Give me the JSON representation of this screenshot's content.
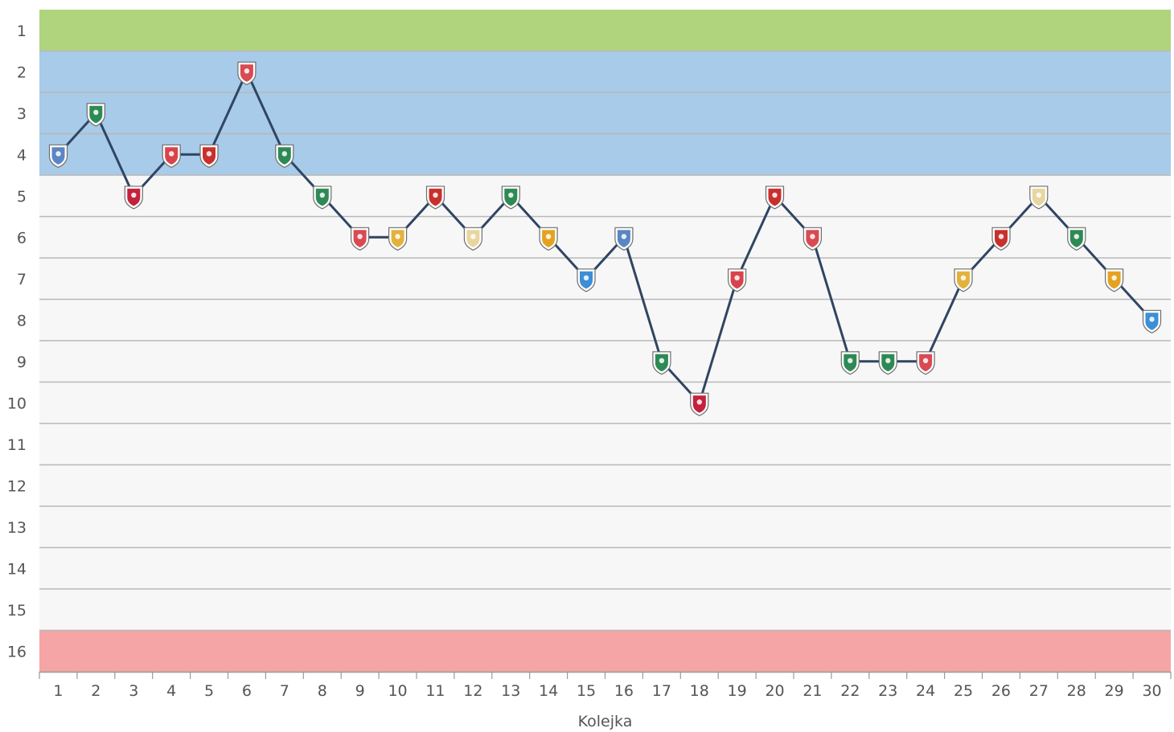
{
  "chart_data": {
    "type": "line",
    "xlabel": "Kolejka",
    "ylabel": "",
    "x": [
      1,
      2,
      3,
      4,
      5,
      6,
      7,
      8,
      9,
      10,
      11,
      12,
      13,
      14,
      15,
      16,
      17,
      18,
      19,
      20,
      21,
      22,
      23,
      24,
      25,
      26,
      27,
      28,
      29,
      30
    ],
    "ylim": [
      1,
      16
    ],
    "y_reversed": true,
    "y_ticks": [
      1,
      2,
      3,
      4,
      5,
      6,
      7,
      8,
      9,
      10,
      11,
      12,
      13,
      14,
      15,
      16
    ],
    "grid": true,
    "bands": [
      {
        "from": 1,
        "to": 1,
        "color": "#b0d47e"
      },
      {
        "from": 2,
        "to": 4,
        "color": "#a7cbe8"
      },
      {
        "from": 16,
        "to": 16,
        "color": "#f5a5a5"
      }
    ],
    "series": [
      {
        "color": "#2f4563",
        "values": [
          4,
          3,
          5,
          4,
          4,
          2,
          4,
          5,
          6,
          6,
          5,
          6,
          5,
          6,
          7,
          6,
          9,
          10,
          7,
          5,
          6,
          9,
          9,
          9,
          7,
          6,
          5,
          6,
          7,
          8
        ],
        "marker_icons": [
          "lech-crest-icon",
          "warta-crest-icon",
          "rakow-crest-icon",
          "cracovia-crest-icon",
          "jagiellonia-crest-icon",
          "gornik-crest-icon",
          "legia-crest-icon",
          "lechia-crest-icon",
          "piast-crest-icon",
          "stal-crest-icon",
          "wisla-crest-icon",
          "pogon-crest-icon",
          "slask-crest-icon",
          "pogon-szczecin-crest-icon",
          "wisla-plock-crest-icon",
          "lech-crest-icon",
          "warta-crest-icon",
          "rakow-crest-icon",
          "cracovia-crest-icon",
          "jagiellonia-crest-icon",
          "gornik-crest-icon",
          "legia-crest-icon",
          "lechia-crest-icon",
          "piast-crest-icon",
          "stal-crest-icon",
          "wisla-crest-icon",
          "pogon-crest-icon",
          "slask-crest-icon",
          "pogon-szczecin-crest-icon",
          "wisla-plock-crest-icon"
        ],
        "marker_colors": [
          "#5b86c4",
          "#2e8a55",
          "#c4213c",
          "#d8444c",
          "#c9302c",
          "#d94a52",
          "#2e8a55",
          "#2e8a55",
          "#d94a52",
          "#e3b23c",
          "#c9302c",
          "#e8d6a0",
          "#2e8a55",
          "#e3a321",
          "#3c8ed6",
          "#5b86c4",
          "#2e8a55",
          "#c4213c",
          "#d8444c",
          "#c9302c",
          "#d94a52",
          "#2e8a55",
          "#2e8a55",
          "#d94a52",
          "#e3b23c",
          "#c9302c",
          "#e8d6a0",
          "#2e8a55",
          "#e3a321",
          "#3c8ed6"
        ]
      }
    ]
  }
}
